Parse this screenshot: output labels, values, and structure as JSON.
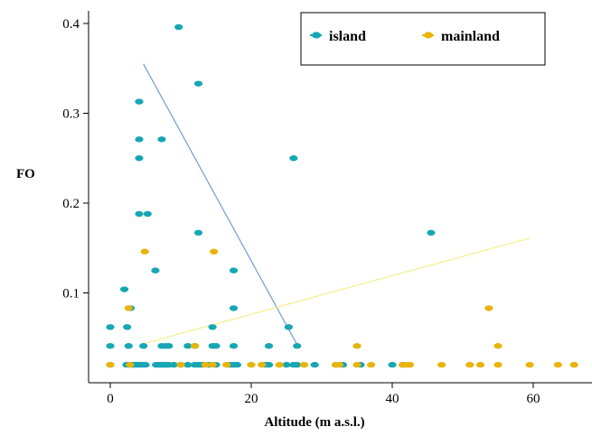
{
  "chart_data": {
    "type": "scatter",
    "xlabel": "Altitude (m a.s.l.)",
    "ylabel": "FO",
    "xlim": [
      -2,
      68
    ],
    "ylim": [
      0.0,
      0.415
    ],
    "xticks": [
      0,
      20,
      40,
      60
    ],
    "yticks": [
      0.1,
      0.2,
      0.3,
      0.4
    ],
    "xtick_labels": [
      "0",
      "20",
      "40",
      "60"
    ],
    "ytick_labels": [
      "0.1",
      "0.2",
      "0.3",
      "0.4"
    ],
    "grid": false,
    "legend_position": "top-right",
    "series": [
      {
        "name": "island",
        "color": "#16a6b4",
        "points": [
          [
            0,
            0.02
          ],
          [
            2.3,
            0.02
          ],
          [
            2.6,
            0.02
          ],
          [
            2.9,
            0.02
          ],
          [
            3.2,
            0.02
          ],
          [
            3.5,
            0.02
          ],
          [
            3.8,
            0.02
          ],
          [
            4.1,
            0.02
          ],
          [
            4.5,
            0.02
          ],
          [
            5.0,
            0.02
          ],
          [
            6.5,
            0.02
          ],
          [
            6.8,
            0.02
          ],
          [
            7.1,
            0.02
          ],
          [
            7.4,
            0.02
          ],
          [
            7.7,
            0.02
          ],
          [
            8.0,
            0.02
          ],
          [
            8.3,
            0.02
          ],
          [
            9.0,
            0.02
          ],
          [
            10.0,
            0.02
          ],
          [
            11.0,
            0.02
          ],
          [
            12.0,
            0.02
          ],
          [
            12.5,
            0.02
          ],
          [
            13.0,
            0.02
          ],
          [
            14.0,
            0.02
          ],
          [
            15.0,
            0.02
          ],
          [
            17.0,
            0.02
          ],
          [
            17.5,
            0.02
          ],
          [
            18.0,
            0.02
          ],
          [
            22.0,
            0.02
          ],
          [
            22.5,
            0.02
          ],
          [
            25.0,
            0.02
          ],
          [
            26.0,
            0.02
          ],
          [
            26.5,
            0.02
          ],
          [
            29.0,
            0.02
          ],
          [
            32.0,
            0.02
          ],
          [
            33.0,
            0.02
          ],
          [
            35.5,
            0.02
          ],
          [
            40.0,
            0.02
          ],
          [
            41.5,
            0.02
          ],
          [
            0,
            0.041
          ],
          [
            2.6,
            0.041
          ],
          [
            4.7,
            0.041
          ],
          [
            7.3,
            0.041
          ],
          [
            7.9,
            0.041
          ],
          [
            8.3,
            0.041
          ],
          [
            11.0,
            0.041
          ],
          [
            12.0,
            0.041
          ],
          [
            14.5,
            0.041
          ],
          [
            15.0,
            0.041
          ],
          [
            17.5,
            0.041
          ],
          [
            22.5,
            0.041
          ],
          [
            26.5,
            0.041
          ],
          [
            0,
            0.062
          ],
          [
            2.4,
            0.062
          ],
          [
            14.5,
            0.062
          ],
          [
            25.3,
            0.062
          ],
          [
            2.9,
            0.083
          ],
          [
            17.5,
            0.083
          ],
          [
            2.0,
            0.104
          ],
          [
            6.4,
            0.125
          ],
          [
            17.5,
            0.125
          ],
          [
            12.5,
            0.167
          ],
          [
            45.5,
            0.167
          ],
          [
            4.1,
            0.188
          ],
          [
            5.3,
            0.188
          ],
          [
            4.1,
            0.25
          ],
          [
            26.0,
            0.25
          ],
          [
            4.1,
            0.271
          ],
          [
            7.3,
            0.271
          ],
          [
            4.1,
            0.313
          ],
          [
            12.5,
            0.333
          ],
          [
            9.7,
            0.396
          ]
        ],
        "trend": [
          [
            4.7,
            0.355
          ],
          [
            26.6,
            0.041
          ]
        ]
      },
      {
        "name": "mainland",
        "color": "#e8b40c",
        "points": [
          [
            0,
            0.02
          ],
          [
            2.8,
            0.02
          ],
          [
            10.0,
            0.02
          ],
          [
            13.5,
            0.02
          ],
          [
            14.5,
            0.02
          ],
          [
            16.5,
            0.02
          ],
          [
            20.0,
            0.02
          ],
          [
            21.5,
            0.02
          ],
          [
            24.0,
            0.02
          ],
          [
            27.5,
            0.02
          ],
          [
            32.0,
            0.02
          ],
          [
            32.5,
            0.02
          ],
          [
            35.0,
            0.02
          ],
          [
            37.0,
            0.02
          ],
          [
            41.5,
            0.02
          ],
          [
            42.0,
            0.02
          ],
          [
            42.5,
            0.02
          ],
          [
            47.0,
            0.02
          ],
          [
            51.0,
            0.02
          ],
          [
            52.5,
            0.02
          ],
          [
            55.0,
            0.02
          ],
          [
            59.5,
            0.02
          ],
          [
            63.5,
            0.02
          ],
          [
            65.8,
            0.02
          ],
          [
            12.0,
            0.041
          ],
          [
            35.0,
            0.041
          ],
          [
            55.0,
            0.041
          ],
          [
            2.6,
            0.083
          ],
          [
            53.7,
            0.083
          ],
          [
            4.9,
            0.146
          ],
          [
            14.7,
            0.146
          ]
        ],
        "trend": [
          [
            4.5,
            0.043
          ],
          [
            59.5,
            0.161
          ]
        ]
      }
    ]
  }
}
